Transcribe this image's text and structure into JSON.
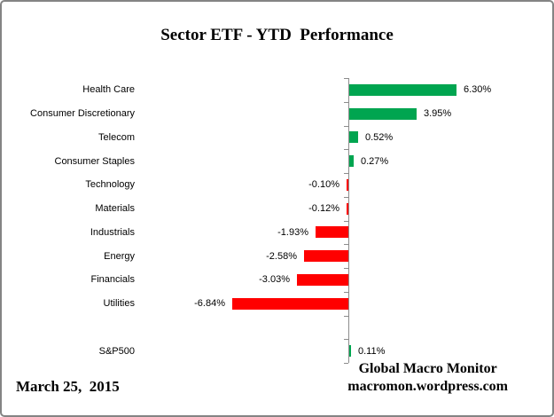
{
  "chart_data": {
    "type": "bar",
    "orientation": "horizontal",
    "title": "Sector ETF - YTD  Performance",
    "categories": [
      "Health Care",
      "Consumer Discretionary",
      "Telecom",
      "Consumer Staples",
      "Technology",
      "Materials",
      "Industrials",
      "Energy",
      "Financials",
      "Utilities",
      "S&P500"
    ],
    "values": [
      6.3,
      3.95,
      0.52,
      0.27,
      -0.1,
      -0.12,
      -1.93,
      -2.58,
      -3.03,
      -6.84,
      0.11
    ],
    "value_labels": [
      "6.30%",
      "3.95%",
      "0.52%",
      "0.27%",
      "-0.10%",
      "-0.12%",
      "-1.93%",
      "-2.58%",
      "-3.03%",
      "-6.84%",
      "0.11%"
    ],
    "unit": "%",
    "gap_before_category": "S&P500",
    "positive_color": "#00A550",
    "negative_color": "#FF0000",
    "legend": "none",
    "axis": {
      "category_axis_color": "#8C8C8C",
      "tick_marks": true,
      "gridlines": false,
      "value_axis_labels": false
    }
  },
  "footer": {
    "date": "March 25,  2015",
    "attribution_line1": "Global Macro Monitor",
    "attribution_line2": "macromon.wordpress.com"
  },
  "frame": {
    "border_color": "#848484",
    "background": "#FFFFFF"
  }
}
